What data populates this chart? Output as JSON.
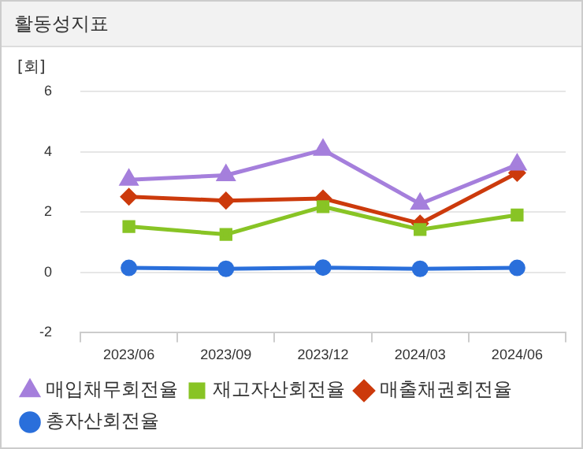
{
  "chart_data": {
    "type": "line",
    "title": "활동성지표",
    "ylabel": "[회]",
    "categories": [
      "2023/06",
      "2023/09",
      "2023/12",
      "2024/03",
      "2024/06"
    ],
    "series": [
      {
        "name": "총자산회전율",
        "color": "#2a6fdb",
        "marker": "circle",
        "values": [
          0.15,
          0.12,
          0.16,
          0.12,
          0.15
        ]
      },
      {
        "name": "매출채권회전율",
        "color": "#cc3a0c",
        "marker": "diamond",
        "values": [
          2.51,
          2.38,
          2.45,
          1.62,
          3.3
        ]
      },
      {
        "name": "재고자산회전율",
        "color": "#88c425",
        "marker": "square",
        "values": [
          1.52,
          1.26,
          2.18,
          1.42,
          1.9
        ]
      },
      {
        "name": "매입채무회전율",
        "color": "#a57fdc",
        "marker": "triangle",
        "values": [
          3.07,
          3.22,
          4.06,
          2.27,
          3.57
        ]
      }
    ],
    "ylim": [
      -2,
      6
    ],
    "yticks": [
      -2,
      0,
      2,
      4,
      6
    ],
    "grid": "y",
    "legend": "bottom",
    "line_style": "solid"
  }
}
